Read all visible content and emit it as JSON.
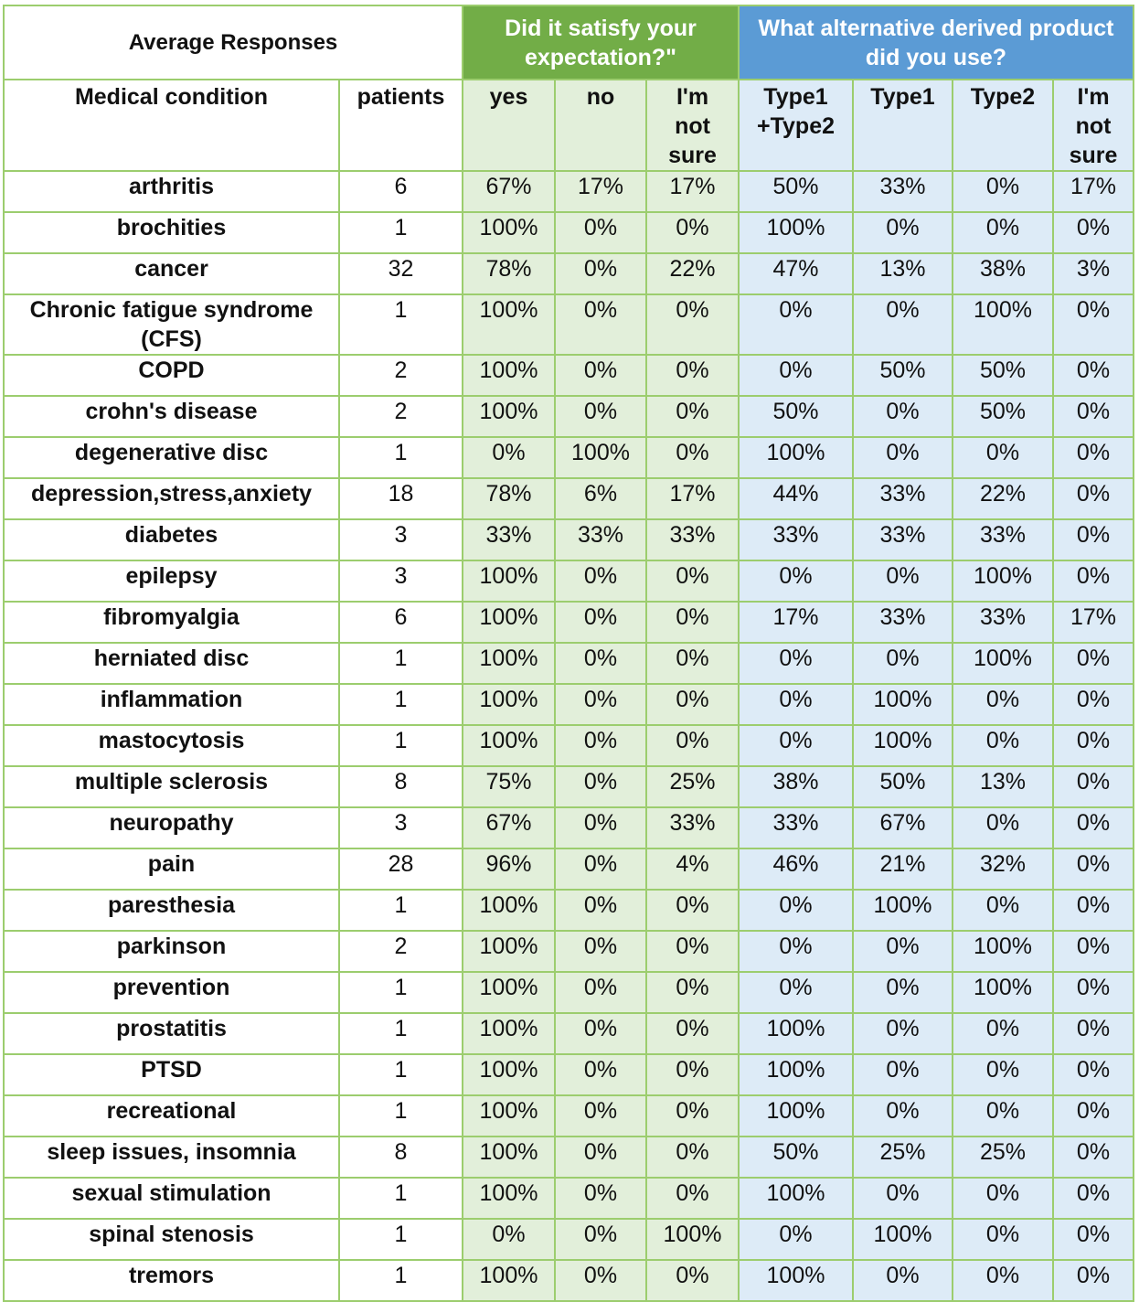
{
  "header": {
    "title": "Average Responses",
    "group1": "Did it satisfy your expectation?\"",
    "group2": "What alternative derived product did you use?"
  },
  "columns": {
    "condition": "Medical condition",
    "patients": "patients",
    "yes": "yes",
    "no": "no",
    "unsure1": "I'm not sure",
    "type1_type2": "Type1 +Type2",
    "type1": "Type1",
    "type2": "Type2",
    "unsure2": "I'm not sure"
  },
  "rows": [
    {
      "condition": "arthritis",
      "patients": "6",
      "yes": "67%",
      "no": "17%",
      "unsure1": "17%",
      "t12": "50%",
      "t1": "33%",
      "t2": "0%",
      "unsure2": "17%"
    },
    {
      "condition": "brochities",
      "patients": "1",
      "yes": "100%",
      "no": "0%",
      "unsure1": "0%",
      "t12": "100%",
      "t1": "0%",
      "t2": "0%",
      "unsure2": "0%"
    },
    {
      "condition": "cancer",
      "patients": "32",
      "yes": "78%",
      "no": "0%",
      "unsure1": "22%",
      "t12": "47%",
      "t1": "13%",
      "t2": "38%",
      "unsure2": "3%"
    },
    {
      "condition": "Chronic fatigue syndrome (CFS)",
      "patients": "1",
      "yes": "100%",
      "no": "0%",
      "unsure1": "0%",
      "t12": "0%",
      "t1": "0%",
      "t2": "100%",
      "unsure2": "0%"
    },
    {
      "condition": "COPD",
      "patients": "2",
      "yes": "100%",
      "no": "0%",
      "unsure1": "0%",
      "t12": "0%",
      "t1": "50%",
      "t2": "50%",
      "unsure2": "0%"
    },
    {
      "condition": "crohn's disease",
      "patients": "2",
      "yes": "100%",
      "no": "0%",
      "unsure1": "0%",
      "t12": "50%",
      "t1": "0%",
      "t2": "50%",
      "unsure2": "0%"
    },
    {
      "condition": "degenerative disc",
      "patients": "1",
      "yes": "0%",
      "no": "100%",
      "unsure1": "0%",
      "t12": "100%",
      "t1": "0%",
      "t2": "0%",
      "unsure2": "0%"
    },
    {
      "condition": "depression,stress,anxiety",
      "patients": "18",
      "yes": "78%",
      "no": "6%",
      "unsure1": "17%",
      "t12": "44%",
      "t1": "33%",
      "t2": "22%",
      "unsure2": "0%"
    },
    {
      "condition": "diabetes",
      "patients": "3",
      "yes": "33%",
      "no": "33%",
      "unsure1": "33%",
      "t12": "33%",
      "t1": "33%",
      "t2": "33%",
      "unsure2": "0%"
    },
    {
      "condition": "epilepsy",
      "patients": "3",
      "yes": "100%",
      "no": "0%",
      "unsure1": "0%",
      "t12": "0%",
      "t1": "0%",
      "t2": "100%",
      "unsure2": "0%"
    },
    {
      "condition": "fibromyalgia",
      "patients": "6",
      "yes": "100%",
      "no": "0%",
      "unsure1": "0%",
      "t12": "17%",
      "t1": "33%",
      "t2": "33%",
      "unsure2": "17%"
    },
    {
      "condition": "herniated disc",
      "patients": "1",
      "yes": "100%",
      "no": "0%",
      "unsure1": "0%",
      "t12": "0%",
      "t1": "0%",
      "t2": "100%",
      "unsure2": "0%"
    },
    {
      "condition": "inflammation",
      "patients": "1",
      "yes": "100%",
      "no": "0%",
      "unsure1": "0%",
      "t12": "0%",
      "t1": "100%",
      "t2": "0%",
      "unsure2": "0%"
    },
    {
      "condition": "mastocytosis",
      "patients": "1",
      "yes": "100%",
      "no": "0%",
      "unsure1": "0%",
      "t12": "0%",
      "t1": "100%",
      "t2": "0%",
      "unsure2": "0%"
    },
    {
      "condition": "multiple sclerosis",
      "patients": "8",
      "yes": "75%",
      "no": "0%",
      "unsure1": "25%",
      "t12": "38%",
      "t1": "50%",
      "t2": "13%",
      "unsure2": "0%"
    },
    {
      "condition": "neuropathy",
      "patients": "3",
      "yes": "67%",
      "no": "0%",
      "unsure1": "33%",
      "t12": "33%",
      "t1": "67%",
      "t2": "0%",
      "unsure2": "0%"
    },
    {
      "condition": "pain",
      "patients": "28",
      "yes": "96%",
      "no": "0%",
      "unsure1": "4%",
      "t12": "46%",
      "t1": "21%",
      "t2": "32%",
      "unsure2": "0%"
    },
    {
      "condition": "paresthesia",
      "patients": "1",
      "yes": "100%",
      "no": "0%",
      "unsure1": "0%",
      "t12": "0%",
      "t1": "100%",
      "t2": "0%",
      "unsure2": "0%"
    },
    {
      "condition": "parkinson",
      "patients": "2",
      "yes": "100%",
      "no": "0%",
      "unsure1": "0%",
      "t12": "0%",
      "t1": "0%",
      "t2": "100%",
      "unsure2": "0%"
    },
    {
      "condition": "prevention",
      "patients": "1",
      "yes": "100%",
      "no": "0%",
      "unsure1": "0%",
      "t12": "0%",
      "t1": "0%",
      "t2": "100%",
      "unsure2": "0%"
    },
    {
      "condition": "prostatitis",
      "patients": "1",
      "yes": "100%",
      "no": "0%",
      "unsure1": "0%",
      "t12": "100%",
      "t1": "0%",
      "t2": "0%",
      "unsure2": "0%"
    },
    {
      "condition": "PTSD",
      "patients": "1",
      "yes": "100%",
      "no": "0%",
      "unsure1": "0%",
      "t12": "100%",
      "t1": "0%",
      "t2": "0%",
      "unsure2": "0%"
    },
    {
      "condition": "recreational",
      "patients": "1",
      "yes": "100%",
      "no": "0%",
      "unsure1": "0%",
      "t12": "100%",
      "t1": "0%",
      "t2": "0%",
      "unsure2": "0%"
    },
    {
      "condition": "sleep issues, insomnia",
      "patients": "8",
      "yes": "100%",
      "no": "0%",
      "unsure1": "0%",
      "t12": "50%",
      "t1": "25%",
      "t2": "25%",
      "unsure2": "0%"
    },
    {
      "condition": "sexual stimulation",
      "patients": "1",
      "yes": "100%",
      "no": "0%",
      "unsure1": "0%",
      "t12": "100%",
      "t1": "0%",
      "t2": "0%",
      "unsure2": "0%"
    },
    {
      "condition": "spinal stenosis",
      "patients": "1",
      "yes": "0%",
      "no": "0%",
      "unsure1": "100%",
      "t12": "0%",
      "t1": "100%",
      "t2": "0%",
      "unsure2": "0%"
    },
    {
      "condition": "tremors",
      "patients": "1",
      "yes": "100%",
      "no": "0%",
      "unsure1": "0%",
      "t12": "100%",
      "t1": "0%",
      "t2": "0%",
      "unsure2": "0%"
    }
  ],
  "colors": {
    "border": "#9ccd6e",
    "group1_header": "#72ad47",
    "group2_header": "#5b9bd5",
    "group1_cells": "#e2efda",
    "group2_cells": "#ddebf7"
  }
}
